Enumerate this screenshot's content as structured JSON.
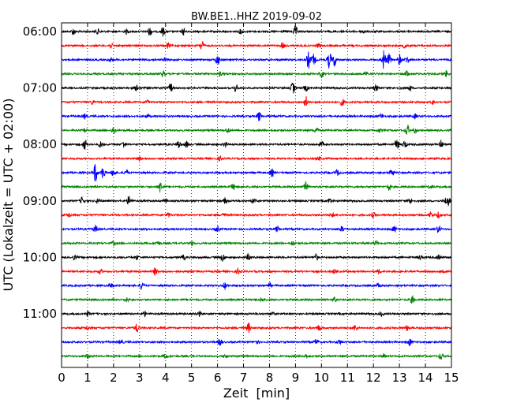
{
  "chart_data": {
    "type": "line",
    "title": "BW.BE1..HHZ 2019-09-02",
    "xlabel": "Zeit  [min]",
    "ylabel": "UTC (Lokalzeit = UTC + 02:00)",
    "xlim": [
      0,
      15
    ],
    "x_ticks": [
      "0",
      "1",
      "2",
      "3",
      "4",
      "5",
      "6",
      "7",
      "8",
      "9",
      "10",
      "11",
      "12",
      "13",
      "14",
      "15"
    ],
    "y_ticks": [
      {
        "label": "06:00",
        "row": 0
      },
      {
        "label": "07:00",
        "row": 4
      },
      {
        "label": "08:00",
        "row": 8
      },
      {
        "label": "09:00",
        "row": 12
      },
      {
        "label": "10:00",
        "row": 16
      },
      {
        "label": "11:00",
        "row": 20
      }
    ],
    "row_count": 24,
    "minutes_per_row": 15,
    "grid": "vertical dotted",
    "colors": [
      "#000000",
      "#ff0000",
      "#0000ff",
      "#008000"
    ],
    "series": [
      {
        "start": "06:00",
        "events": [
          [
            0.45,
            0.5
          ],
          [
            1.4,
            0.35
          ],
          [
            2.5,
            0.3
          ],
          [
            3.4,
            0.6
          ],
          [
            3.9,
            0.6
          ],
          [
            4.7,
            0.5
          ],
          [
            6.9,
            0.3
          ],
          [
            9.0,
            0.7
          ],
          [
            11.6,
            0.3
          ]
        ]
      },
      {
        "start": "06:15",
        "events": [
          [
            1.9,
            0.3
          ],
          [
            4.1,
            0.35
          ],
          [
            5.4,
            0.8
          ],
          [
            8.5,
            0.45
          ],
          [
            9.9,
            0.3
          ],
          [
            13.2,
            0.3
          ]
        ]
      },
      {
        "start": "06:30",
        "events": [
          [
            1.9,
            0.3
          ],
          [
            4.0,
            0.3
          ],
          [
            6.0,
            0.8
          ],
          [
            9.5,
            1.2
          ],
          [
            9.7,
            0.8
          ],
          [
            10.3,
            1.2
          ],
          [
            10.5,
            0.9
          ],
          [
            12.4,
            1.4
          ],
          [
            12.6,
            0.8
          ],
          [
            13.0,
            0.7
          ],
          [
            13.3,
            0.5
          ]
        ]
      },
      {
        "start": "06:45",
        "events": [
          [
            3.9,
            0.4
          ],
          [
            6.1,
            0.3
          ],
          [
            10.0,
            0.5
          ],
          [
            11.7,
            0.3
          ],
          [
            13.3,
            0.4
          ],
          [
            14.8,
            0.4
          ]
        ]
      },
      {
        "start": "07:00",
        "events": [
          [
            2.9,
            0.4
          ],
          [
            4.2,
            0.6
          ],
          [
            6.7,
            0.5
          ],
          [
            8.9,
            0.8
          ],
          [
            9.4,
            0.4
          ],
          [
            12.1,
            0.4
          ],
          [
            13.4,
            0.4
          ]
        ]
      },
      {
        "start": "07:15",
        "events": [
          [
            1.2,
            0.3
          ],
          [
            3.3,
            0.3
          ],
          [
            9.4,
            0.8
          ],
          [
            10.8,
            0.5
          ],
          [
            14.3,
            0.3
          ]
        ]
      },
      {
        "start": "07:30",
        "events": [
          [
            0.9,
            0.3
          ],
          [
            3.3,
            0.3
          ],
          [
            7.6,
            0.7
          ],
          [
            12.3,
            0.3
          ],
          [
            13.6,
            0.3
          ]
        ]
      },
      {
        "start": "07:45",
        "events": [
          [
            0.9,
            0.3
          ],
          [
            2.0,
            0.6
          ],
          [
            6.4,
            0.4
          ],
          [
            9.8,
            0.4
          ],
          [
            12.2,
            0.3
          ],
          [
            13.3,
            0.8
          ],
          [
            13.6,
            0.4
          ]
        ]
      },
      {
        "start": "08:00",
        "events": [
          [
            0.9,
            0.9
          ],
          [
            1.5,
            0.4
          ],
          [
            2.4,
            0.5
          ],
          [
            4.5,
            0.6
          ],
          [
            4.8,
            0.4
          ],
          [
            6.3,
            0.4
          ],
          [
            10.0,
            0.4
          ],
          [
            12.9,
            0.9
          ],
          [
            13.2,
            0.5
          ],
          [
            14.6,
            0.6
          ]
        ]
      },
      {
        "start": "08:15",
        "events": [
          [
            3.0,
            0.3
          ],
          [
            6.1,
            0.3
          ],
          [
            9.9,
            0.3
          ]
        ]
      },
      {
        "start": "08:30",
        "events": [
          [
            1.3,
            1.4
          ],
          [
            1.6,
            0.9
          ],
          [
            2.0,
            0.6
          ],
          [
            2.5,
            0.4
          ],
          [
            8.1,
            0.5
          ],
          [
            10.6,
            0.4
          ],
          [
            12.7,
            0.6
          ]
        ]
      },
      {
        "start": "08:45",
        "events": [
          [
            3.8,
            0.8
          ],
          [
            6.6,
            0.4
          ],
          [
            9.4,
            0.6
          ],
          [
            12.6,
            0.5
          ],
          [
            14.2,
            0.3
          ]
        ]
      },
      {
        "start": "09:00",
        "events": [
          [
            0.8,
            0.5
          ],
          [
            1.4,
            0.4
          ],
          [
            2.6,
            0.7
          ],
          [
            4.0,
            0.3
          ],
          [
            6.3,
            0.4
          ],
          [
            7.4,
            0.4
          ],
          [
            10.3,
            0.4
          ],
          [
            13.4,
            0.4
          ],
          [
            14.8,
            0.5
          ],
          [
            14.9,
            0.5
          ]
        ]
      },
      {
        "start": "09:15",
        "events": [
          [
            0.3,
            0.3
          ],
          [
            4.1,
            0.3
          ],
          [
            6.2,
            0.3
          ],
          [
            10.4,
            0.3
          ],
          [
            12.0,
            0.3
          ],
          [
            14.2,
            0.4
          ],
          [
            14.5,
            0.4
          ]
        ]
      },
      {
        "start": "09:30",
        "events": [
          [
            1.3,
            0.5
          ],
          [
            6.0,
            0.4
          ],
          [
            8.3,
            0.4
          ],
          [
            10.8,
            0.4
          ],
          [
            12.8,
            0.4
          ],
          [
            14.5,
            0.5
          ]
        ]
      },
      {
        "start": "09:45",
        "events": [
          [
            2.0,
            0.3
          ],
          [
            3.7,
            0.3
          ],
          [
            5.0,
            0.3
          ],
          [
            8.9,
            0.3
          ],
          [
            12.1,
            0.3
          ]
        ]
      },
      {
        "start": "10:00",
        "events": [
          [
            0.5,
            0.3
          ],
          [
            2.9,
            0.3
          ],
          [
            4.7,
            0.3
          ],
          [
            6.2,
            0.6
          ],
          [
            7.2,
            0.5
          ],
          [
            9.8,
            0.4
          ],
          [
            13.8,
            0.3
          ],
          [
            14.5,
            0.3
          ]
        ]
      },
      {
        "start": "10:15",
        "events": [
          [
            1.5,
            0.3
          ],
          [
            3.6,
            0.5
          ],
          [
            6.8,
            0.4
          ],
          [
            10.5,
            0.3
          ],
          [
            12.2,
            0.3
          ],
          [
            14.7,
            0.3
          ]
        ]
      },
      {
        "start": "10:30",
        "events": [
          [
            1.9,
            0.3
          ],
          [
            3.1,
            0.6
          ],
          [
            6.3,
            0.5
          ],
          [
            8.0,
            0.3
          ],
          [
            12.2,
            0.3
          ]
        ]
      },
      {
        "start": "10:45",
        "events": [
          [
            2.5,
            0.3
          ],
          [
            7.7,
            0.3
          ],
          [
            10.5,
            0.3
          ],
          [
            13.5,
            0.5
          ]
        ]
      },
      {
        "start": "11:00",
        "events": [
          [
            1.0,
            0.3
          ],
          [
            3.2,
            0.3
          ],
          [
            5.3,
            0.3
          ],
          [
            8.1,
            0.3
          ],
          [
            12.3,
            0.3
          ]
        ]
      },
      {
        "start": "11:15",
        "events": [
          [
            1.0,
            0.3
          ],
          [
            2.9,
            0.6
          ],
          [
            7.2,
            0.7
          ],
          [
            9.9,
            0.4
          ],
          [
            11.3,
            0.4
          ],
          [
            13.3,
            0.4
          ]
        ]
      },
      {
        "start": "11:30",
        "events": [
          [
            2.3,
            0.3
          ],
          [
            6.1,
            0.5
          ],
          [
            7.5,
            0.3
          ],
          [
            9.8,
            0.4
          ],
          [
            10.7,
            0.3
          ],
          [
            13.4,
            0.5
          ]
        ]
      },
      {
        "start": "11:45",
        "events": [
          [
            1.0,
            0.3
          ],
          [
            4.0,
            0.3
          ],
          [
            6.3,
            0.3
          ],
          [
            9.4,
            0.3
          ],
          [
            12.4,
            0.3
          ],
          [
            14.6,
            0.5
          ]
        ]
      }
    ]
  }
}
